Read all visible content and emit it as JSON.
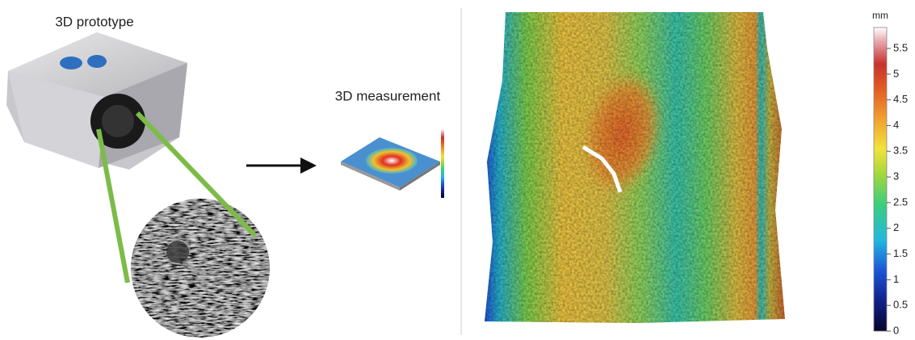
{
  "left_panel": {
    "prototype_label": "3D prototype",
    "measurement_label": "3D measurement"
  },
  "colorbar": {
    "unit": "mm",
    "ticks": [
      0,
      0.5,
      1,
      1.5,
      2,
      2.5,
      3,
      3.5,
      4,
      4.5,
      5,
      5.5
    ]
  }
}
